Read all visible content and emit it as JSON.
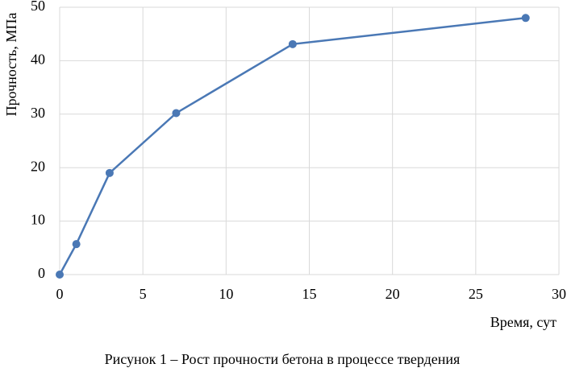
{
  "chart_data": {
    "type": "line",
    "caption": "Рисунок 1 – Рост прочности бетона в процессе твердения",
    "x_label": "Время, сут",
    "y_label": "Прочность, МПа",
    "x": [
      0,
      1,
      3,
      7,
      14,
      28
    ],
    "series": [
      {
        "color": "#4a78b5",
        "values": [
          0,
          5.7,
          19,
          30.2,
          43.1,
          48
        ]
      }
    ],
    "xlim": [
      0,
      30
    ],
    "xticks": [
      0,
      5,
      10,
      15,
      20,
      25,
      30
    ],
    "ylim": [
      0,
      50
    ],
    "yticks": [
      0,
      10,
      20,
      30,
      40,
      50
    ],
    "grid": true
  }
}
